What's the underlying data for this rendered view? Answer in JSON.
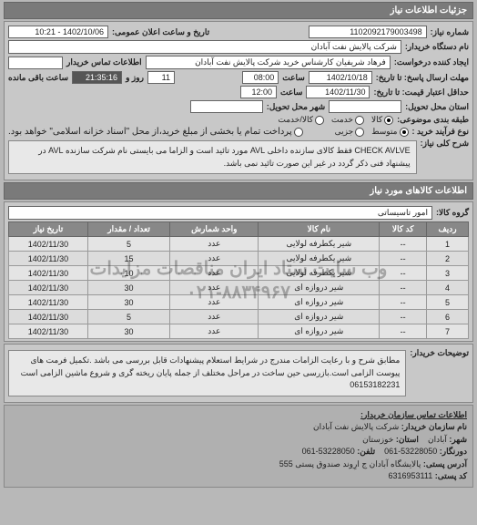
{
  "header": {
    "title": "جزئیات اطلاعات نیاز"
  },
  "need": {
    "number_label": "شماره نیاز:",
    "number": "1102092179003498",
    "announce_label": "تاریخ و ساعت اعلان عمومی:",
    "announce": "1402/10/06 - 10:21",
    "buyer_org_label": "نام دستگاه خریدار:",
    "buyer_org": "شرکت پالایش نفت آبادان",
    "requester_label": "ایجاد کننده درخواست:",
    "requester": "فرهاد شریفیان کارشناس خرید شرکت پالایش نفت آبادان",
    "buyer_contact_label": "اطلاعات تماس خریدار",
    "buyer_contact": "",
    "deadline_send_label": "مهلت ارسال پاسخ: تا تاریخ:",
    "deadline_send_date": "1402/10/18",
    "time_label": "ساعت",
    "deadline_send_time": "08:00",
    "day_label": "روز و",
    "days_left": "11",
    "countdown": "21:35:16",
    "remain_label": "ساعت باقی مانده",
    "deadline_price_label": "حداقل اعتبار قیمت: تا تاریخ:",
    "deadline_price_date": "1402/11/30",
    "deadline_price_time": "12:00",
    "delivery_state_label": "استان محل تحویل:",
    "delivery_state": "",
    "delivery_city_label": "شهر محل تحویل:",
    "delivery_city": "",
    "budget_label": "طبقه بندی موضوعی:",
    "budget_options": [
      "کالا",
      "خدمت",
      "کالا/خدمت"
    ],
    "budget_selected": 0,
    "buy_type_label": "نوع فرآیند خرید :",
    "buy_type_options": [
      "متوسط",
      "جزیی"
    ],
    "buy_type_selected": 0,
    "pay_note": "پرداخت تمام یا بخشی از مبلغ خرید،از محل \"اسناد خزانه اسلامی\" خواهد بود.",
    "pay_note_checked": false,
    "desc_label": "شرح کلی نیاز:",
    "desc": "CHECK AVLVE فقط کالای سازنده داخلی AVL مورد تائید است و الزاما می بایستی نام شرکت سازنده AVL در پیشنهاد فنی ذکر گردد در غیر این صورت تائید نمی باشد."
  },
  "goods": {
    "header": "اطلاعات کالاهای مورد نیاز",
    "group_label": "گروه کالا:",
    "group": "امور تاسیساتی",
    "columns": [
      "ردیف",
      "کد کالا",
      "نام کالا",
      "واحد شمارش",
      "تعداد / مقدار",
      "تاریخ نیاز"
    ],
    "rows": [
      [
        "1",
        "--",
        "شیر یکطرفه لولایی",
        "عدد",
        "5",
        "1402/11/30"
      ],
      [
        "2",
        "--",
        "شیر یکطرفه لولایی",
        "عدد",
        "15",
        "1402/11/30"
      ],
      [
        "3",
        "--",
        "شیر یکطرفه لولایی",
        "عدد",
        "10",
        "1402/11/30"
      ],
      [
        "4",
        "--",
        "شیر دروازه ای",
        "عدد",
        "30",
        "1402/11/30"
      ],
      [
        "5",
        "--",
        "شیر دروازه ای",
        "عدد",
        "30",
        "1402/11/30"
      ],
      [
        "6",
        "--",
        "شیر دروازه ای",
        "عدد",
        "5",
        "1402/11/30"
      ],
      [
        "7",
        "--",
        "شیر دروازه ای",
        "عدد",
        "30",
        "1402/11/30"
      ]
    ],
    "watermark_line1": "وب سایت ستاد ایران مناقصات مزایدات",
    "watermark_line2": "۰۲۱-۸۸۳۴۹۶۷"
  },
  "explain": {
    "label": "توضیحات خریدار:",
    "text": "مطابق شرح و با رعایت الزامات مندرج در شرایط استعلام پیشنهادات قابل بررسی می باشد .تکمیل فرمت های پیوست الزامی است.بازرسی حین ساخت در مراحل مختلف از جمله پایان ریخته گری و شروع ماشین الزامی است 06153182231"
  },
  "contact": {
    "header": "اطلاعات تماس سازمان خریدار:",
    "org_label": "نام سازمان خریدار:",
    "org": "شرکت پالایش نفت آبادان",
    "city_label": "شهر:",
    "city": "آبادان",
    "province_label": "استان:",
    "province": "خوزستان",
    "fax_label": "دورنگار:",
    "fax": "53228050-061",
    "phone_label": "تلفن:",
    "phone": "53228050-061",
    "address_label": "آدرس پستی:",
    "address": "پالایشگاه آبادان ج ارِوند صندوق پستی 555",
    "postal_label": "کد پستی:",
    "postal": "6316953111"
  }
}
